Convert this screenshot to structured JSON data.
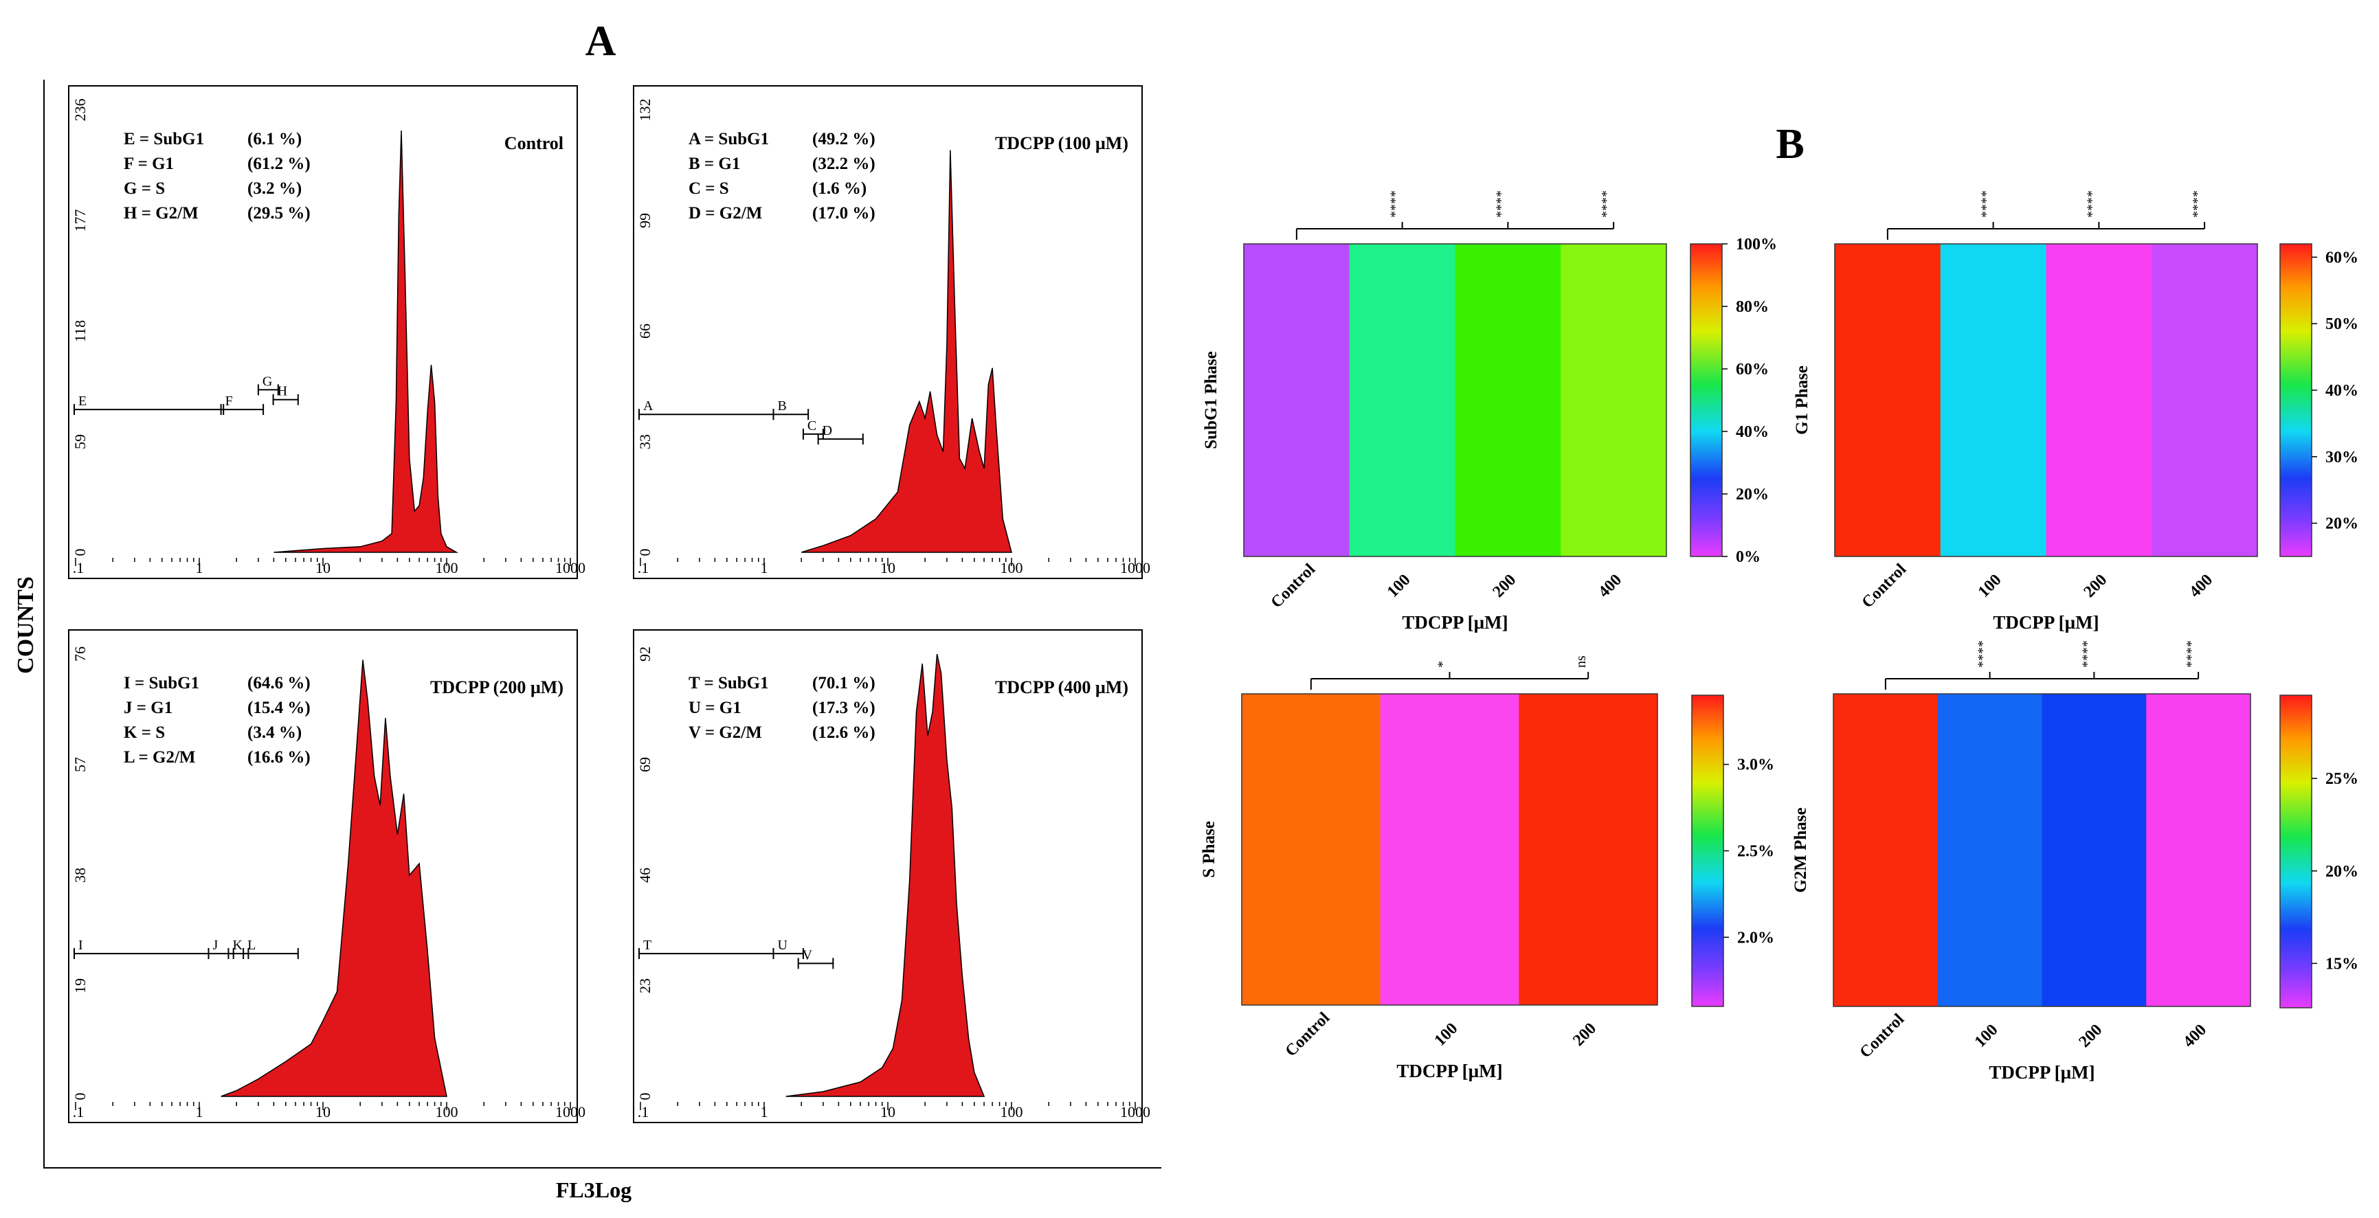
{
  "panel_labels": {
    "a": "A",
    "b": "B"
  },
  "figure_a": {
    "ylabel": "COUNTS",
    "xlabel": "FL3Log",
    "x_tick_labels": [
      ".1",
      "1",
      "10",
      "100",
      "1000"
    ]
  },
  "figure_b": {
    "colorbar_tick_format": "percent"
  },
  "chart_data": [
    {
      "type": "area",
      "title": "Control",
      "xscale": "log",
      "xlim": [
        0.1,
        1000
      ],
      "yticks": [
        "0",
        "59",
        "118",
        "177",
        "236"
      ],
      "ylim": [
        0,
        236
      ],
      "gate_markers": [
        "E",
        "F",
        "G",
        "H"
      ],
      "stats": [
        {
          "label": "E = SubG1",
          "value": "(6.1 %)"
        },
        {
          "label": "F = G1",
          "value": "(61.2 %)"
        },
        {
          "label": "G = S",
          "value": "(3.2 %)"
        },
        {
          "label": "H = G2/M",
          "value": "(29.5 %)"
        }
      ],
      "x": [
        4,
        10,
        20,
        30,
        36,
        39,
        41,
        43,
        46,
        50,
        55,
        60,
        65,
        70,
        75,
        80,
        85,
        90,
        100,
        120
      ],
      "y": [
        0,
        2,
        3,
        6,
        10,
        80,
        180,
        225,
        150,
        50,
        22,
        25,
        40,
        75,
        100,
        80,
        30,
        10,
        3,
        0
      ]
    },
    {
      "type": "area",
      "title": "TDCPP (100 µM)",
      "xscale": "log",
      "xlim": [
        0.1,
        1000
      ],
      "yticks": [
        "0",
        "33",
        "66",
        "99",
        "132"
      ],
      "ylim": [
        0,
        132
      ],
      "gate_markers": [
        "A",
        "B",
        "C",
        "D"
      ],
      "stats": [
        {
          "label": "A = SubG1",
          "value": "(49.2 %)"
        },
        {
          "label": "B = G1",
          "value": "(32.2 %)"
        },
        {
          "label": "C = S",
          "value": "(1.6 %)"
        },
        {
          "label": "D = G2/M",
          "value": "(17.0 %)"
        }
      ],
      "x": [
        2,
        3,
        5,
        8,
        12,
        15,
        18,
        20,
        22,
        25,
        28,
        30,
        32,
        35,
        38,
        42,
        48,
        55,
        60,
        65,
        70,
        75,
        85,
        100
      ],
      "y": [
        0,
        2,
        5,
        10,
        18,
        38,
        45,
        40,
        48,
        35,
        30,
        62,
        120,
        70,
        28,
        25,
        40,
        30,
        25,
        50,
        55,
        38,
        10,
        0
      ]
    },
    {
      "type": "area",
      "title": "TDCPP (200 µM)",
      "xscale": "log",
      "xlim": [
        0.1,
        1000
      ],
      "yticks": [
        "0",
        "19",
        "38",
        "57",
        "76"
      ],
      "ylim": [
        0,
        76
      ],
      "gate_markers": [
        "I",
        "J",
        "K",
        "L"
      ],
      "stats": [
        {
          "label": "I = SubG1",
          "value": "(64.6 %)"
        },
        {
          "label": "J = G1",
          "value": "(15.4 %)"
        },
        {
          "label": "K = S",
          "value": "(3.4 %)"
        },
        {
          "label": "L = G2/M",
          "value": "(16.6 %)"
        }
      ],
      "x": [
        1.5,
        2,
        3,
        5,
        8,
        10,
        13,
        16,
        19,
        21,
        23,
        26,
        29,
        32,
        35,
        40,
        45,
        50,
        60,
        70,
        80,
        100
      ],
      "y": [
        0,
        1,
        3,
        6,
        9,
        13,
        18,
        40,
        62,
        75,
        68,
        55,
        50,
        65,
        55,
        45,
        52,
        38,
        40,
        25,
        10,
        0
      ]
    },
    {
      "type": "area",
      "title": "TDCPP (400 µM)",
      "xscale": "log",
      "xlim": [
        0.1,
        1000
      ],
      "yticks": [
        "0",
        "23",
        "46",
        "69",
        "92"
      ],
      "ylim": [
        0,
        92
      ],
      "gate_markers": [
        "T",
        "U",
        "V"
      ],
      "stats": [
        {
          "label": "T = SubG1",
          "value": "(70.1 %)"
        },
        {
          "label": "U = G1",
          "value": "(17.3 %)"
        },
        {
          "label": "V = G2/M",
          "value": "(12.6 %)"
        }
      ],
      "x": [
        1.5,
        3,
        6,
        9,
        11,
        13,
        15,
        17,
        19,
        21,
        23,
        25,
        27,
        30,
        33,
        36,
        40,
        45,
        50,
        60
      ],
      "y": [
        0,
        1,
        3,
        6,
        10,
        20,
        45,
        80,
        90,
        75,
        80,
        92,
        88,
        70,
        60,
        40,
        25,
        12,
        5,
        0
      ]
    },
    {
      "type": "heatmap",
      "ylabel": "SubG1 Phase",
      "xlabel": "TDCPP [µM]",
      "categories": [
        "Control",
        "100",
        "200",
        "400"
      ],
      "values": [
        6.1,
        49.2,
        64.6,
        70.1
      ],
      "colorbar_range": [
        0,
        100
      ],
      "colorbar_ticks": [
        "0%",
        "20%",
        "40%",
        "60%",
        "80%",
        "100%"
      ],
      "colors": [
        "#b84dff",
        "#1ef28a",
        "#39f000",
        "#86f50f"
      ],
      "significance": [
        "****",
        "****",
        "****"
      ]
    },
    {
      "type": "heatmap",
      "ylabel": "G1 Phase",
      "xlabel": "TDCPP [µM]",
      "categories": [
        "Control",
        "100",
        "200",
        "400"
      ],
      "values": [
        61.2,
        32.2,
        15.4,
        17.3
      ],
      "colorbar_range": [
        15,
        62
      ],
      "colorbar_ticks": [
        "20%",
        "30%",
        "40%",
        "50%",
        "60%"
      ],
      "colors": [
        "#fb2a08",
        "#10d8f2",
        "#f93ff2",
        "#c84aff"
      ],
      "significance": [
        "****",
        "****",
        "****"
      ]
    },
    {
      "type": "heatmap",
      "ylabel": "S Phase",
      "xlabel": "TDCPP [µM]",
      "categories": [
        "Control",
        "100",
        "200"
      ],
      "values": [
        3.2,
        1.6,
        3.4
      ],
      "colorbar_range": [
        1.6,
        3.4
      ],
      "colorbar_ticks": [
        "2.0%",
        "2.5%",
        "3.0%"
      ],
      "colors": [
        "#ff6a08",
        "#fb45ee",
        "#fd2a0a"
      ],
      "significance": [
        "*",
        "ns"
      ]
    },
    {
      "type": "heatmap",
      "ylabel": "G2M Phase",
      "xlabel": "TDCPP [µM]",
      "categories": [
        "Control",
        "100",
        "200",
        "400"
      ],
      "values": [
        29.5,
        17.0,
        16.6,
        12.6
      ],
      "colorbar_range": [
        12.6,
        29.5
      ],
      "colorbar_ticks": [
        "15%",
        "20%",
        "25%"
      ],
      "colors": [
        "#fb2a0a",
        "#1466f5",
        "#0d40f5",
        "#f73ff0"
      ],
      "significance": [
        "****",
        "****",
        "****"
      ]
    }
  ]
}
